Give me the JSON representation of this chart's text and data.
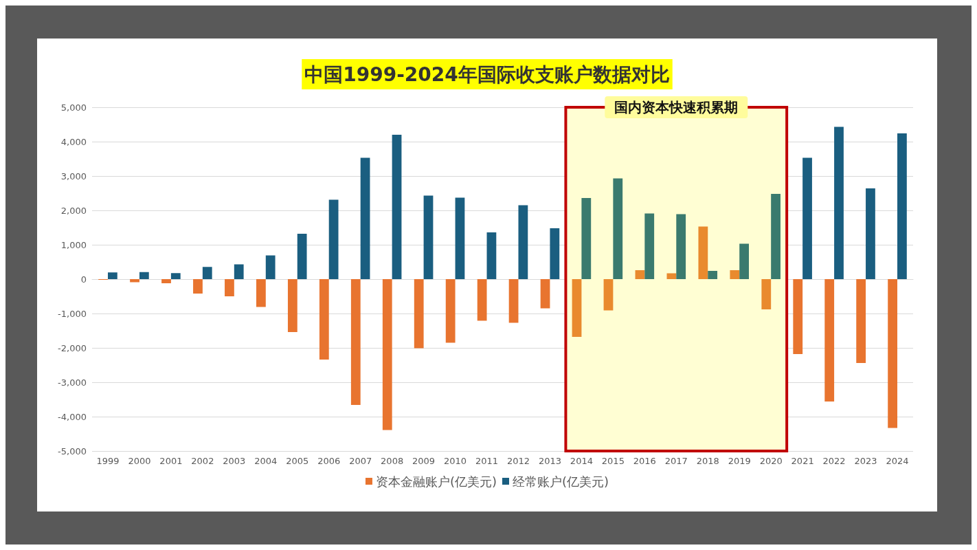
{
  "chart_data": {
    "type": "bar",
    "title": "中国1999-2024年国际收支账户数据对比",
    "categories": [
      "1999",
      "2000",
      "2001",
      "2002",
      "2003",
      "2004",
      "2005",
      "2006",
      "2007",
      "2008",
      "2009",
      "2010",
      "2011",
      "2012",
      "2013",
      "2014",
      "2015",
      "2016",
      "2017",
      "2018",
      "2019",
      "2020",
      "2021",
      "2022",
      "2023",
      "2024"
    ],
    "series": [
      {
        "name": "资本金融账户(亿美元)",
        "color": "#e8742f",
        "colors": [
          "#e8742f",
          "#e8742f",
          "#e8742f",
          "#e8742f",
          "#e8742f",
          "#e8742f",
          "#e8742f",
          "#e8742f",
          "#e8742f",
          "#e8742f",
          "#e8742f",
          "#e8742f",
          "#e8742f",
          "#e8742f",
          "#e8742f",
          "#e98a2e",
          "#e98a2e",
          "#e98a2e",
          "#e98a2e",
          "#e98a2e",
          "#e98a2e",
          "#e98a2e",
          "#e8742f",
          "#e8742f",
          "#e8742f",
          "#e8742f"
        ],
        "values": [
          -20,
          -90,
          -120,
          -420,
          -500,
          -810,
          -1540,
          -2340,
          -3660,
          -4390,
          -2010,
          -1850,
          -1210,
          -1270,
          -850,
          -1680,
          -910,
          260,
          170,
          1530,
          260,
          -880,
          -2180,
          -3560,
          -2440,
          -4330
        ]
      },
      {
        "name": "经常账户(亿美元)",
        "color": "#1a5e80",
        "colors": [
          "#1a5e80",
          "#1a5e80",
          "#1a5e80",
          "#1a5e80",
          "#1a5e80",
          "#1a5e80",
          "#1a5e80",
          "#1a5e80",
          "#1a5e80",
          "#1a5e80",
          "#1a5e80",
          "#1a5e80",
          "#1a5e80",
          "#1a5e80",
          "#1a5e80",
          "#3a7a6e",
          "#3a7a6e",
          "#3a7a6e",
          "#3a7a6e",
          "#3a7a6e",
          "#3a7a6e",
          "#3a7a6e",
          "#1a5e80",
          "#1a5e80",
          "#1a5e80",
          "#1a5e80"
        ],
        "values": [
          195,
          205,
          175,
          355,
          430,
          690,
          1320,
          2310,
          3530,
          4200,
          2430,
          2370,
          1360,
          2150,
          1480,
          2360,
          2930,
          1910,
          1890,
          240,
          1030,
          2480,
          3530,
          4430,
          2640,
          4240
        ]
      }
    ],
    "ylim": [
      -5000,
      5000
    ],
    "yticks": [
      {
        "value": -5000,
        "label": "-5,000"
      },
      {
        "value": -4000,
        "label": "-4,000"
      },
      {
        "value": -3000,
        "label": "-3,000"
      },
      {
        "value": -2000,
        "label": "-2,000"
      },
      {
        "value": -1000,
        "label": "-1,000"
      },
      0,
      {
        "value": 1000,
        "label": "1,000"
      },
      {
        "value": 2000,
        "label": "2,000"
      },
      {
        "value": 3000,
        "label": "3,000"
      },
      {
        "value": 4000,
        "label": "4,000"
      },
      {
        "value": 5000,
        "label": "5,000"
      }
    ],
    "bands": [
      {
        "axis": "x",
        "from": "2014",
        "to": "2020",
        "label": "国内资本快速积累期",
        "color": "#c00000"
      }
    ],
    "grid": "y",
    "legend": "bottom"
  }
}
